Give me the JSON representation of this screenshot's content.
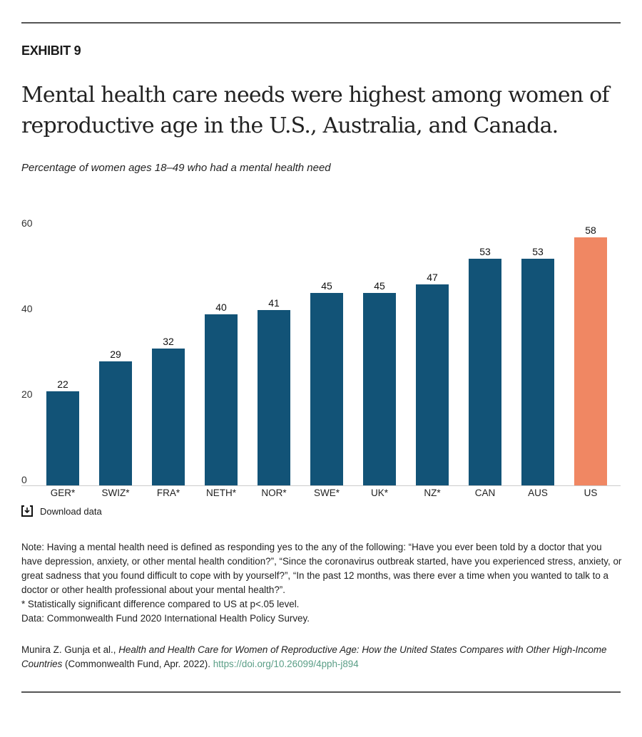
{
  "exhibit": "EXHIBIT 9",
  "title": "Mental health care needs were highest among women of reproductive age in the U.S., Australia, and Canada.",
  "subtitle": "Percentage of women ages 18–49 who had a mental health need",
  "chart_data": {
    "type": "bar",
    "categories": [
      "GER*",
      "SWIZ*",
      "FRA*",
      "NETH*",
      "NOR*",
      "SWE*",
      "UK*",
      "NZ*",
      "CAN",
      "AUS",
      "US"
    ],
    "values": [
      22,
      29,
      32,
      40,
      41,
      45,
      45,
      47,
      53,
      53,
      58
    ],
    "ylim": [
      0,
      60
    ],
    "yticks": [
      0,
      20,
      40,
      60
    ],
    "grid": false,
    "colors": {
      "default": "#125377",
      "highlight": "#f08763"
    },
    "highlight_category": "US"
  },
  "download_label": "Download data",
  "notes": [
    "Note: Having a mental health need is defined as responding yes to the any of the following: “Have you ever been told by a doctor that you have depression, anxiety, or other mental health condition?”, “Since the coronavirus outbreak started, have you experienced stress, anxiety, or great sadness that you found difficult to cope with by yourself?”, “In the past 12 months, was there ever a time when you wanted to talk to a doctor or other health professional about your mental health?”.",
    "* Statistically significant difference compared to US at p<.05 level.",
    "Data: Commonwealth Fund 2020 International Health Policy Survey."
  ],
  "citation": {
    "authors": "Munira Z. Gunja et al., ",
    "work": "Health and Health Care for Women of Reproductive Age: How the United States Compares with Other High-Income Countries",
    "publisher": " (Commonwealth Fund, Apr. 2022). ",
    "link": "https://doi.org/10.26099/4pph-j894"
  }
}
